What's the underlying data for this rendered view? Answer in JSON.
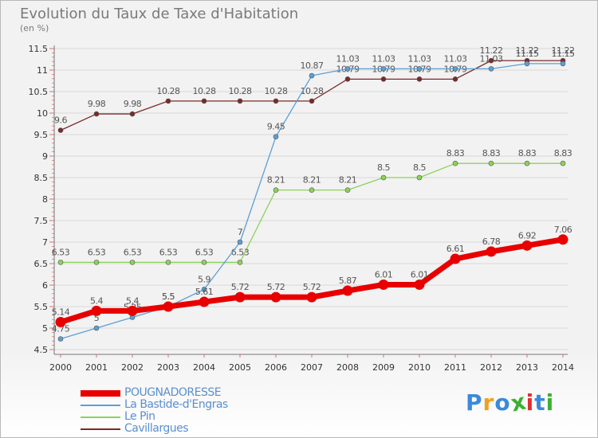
{
  "header": {
    "title": "Evolution du Taux de Taxe d'Habitation",
    "subtitle": "(en %)"
  },
  "logo": {
    "text": "Proxiti",
    "letter_colors": [
      "#3b8ad9",
      "#f0a020",
      "#3b8ad9",
      "#3cb034",
      "#e03030",
      "#3b8ad9",
      "#3cb034"
    ]
  },
  "chart_data": {
    "type": "line",
    "title": "Evolution du Taux de Taxe d'Habitation",
    "subtitle": "(en %)",
    "xlabel": "",
    "ylabel": "",
    "x": [
      "2000",
      "2001",
      "2002",
      "2003",
      "2004",
      "2005",
      "2006",
      "2007",
      "2008",
      "2009",
      "2010",
      "2011",
      "2012",
      "2013",
      "2014"
    ],
    "ylim": [
      4.5,
      11.5
    ],
    "yticks": [
      "4.5",
      "5",
      "5.5",
      "6",
      "6.5",
      "7",
      "7.5",
      "8",
      "8.5",
      "9",
      "9.5",
      "10",
      "10.5",
      "11",
      "11.5"
    ],
    "grid": "horizontal",
    "legend_position": "bottom-left",
    "series": [
      {
        "name": "POUGNADORESSE",
        "color": "#e80000",
        "values": [
          5.14,
          5.4,
          5.4,
          5.5,
          5.61,
          5.72,
          5.72,
          5.72,
          5.87,
          6.01,
          6.01,
          6.61,
          6.78,
          6.92,
          7.06
        ],
        "labels": [
          "5.14",
          "5.4",
          "5.4",
          "5.5",
          "5.61",
          "5.72",
          "5.72",
          "5.72",
          "5.87",
          "6.01",
          "6.01",
          "6.61",
          "6.78",
          "6.92",
          "7.06"
        ]
      },
      {
        "name": "La Bastide-d'Engras",
        "color": "#5b9fd6",
        "values": [
          4.75,
          5,
          5.25,
          5.5,
          5.9,
          7,
          9.45,
          10.87,
          11.03,
          11.03,
          11.03,
          11.03,
          11.03,
          11.15,
          11.15
        ],
        "labels": [
          "4.75",
          "5",
          "5.25",
          "5.5",
          "5.9",
          "7",
          "9.45",
          "10.87",
          "11.03",
          "11.03",
          "11.03",
          "11.03",
          "11.03",
          "11.15",
          "11.15"
        ]
      },
      {
        "name": "Le Pin",
        "color": "#8cd25a",
        "values": [
          6.53,
          6.53,
          6.53,
          6.53,
          6.53,
          6.53,
          8.21,
          8.21,
          8.21,
          8.5,
          8.5,
          8.83,
          8.83,
          8.83,
          8.83
        ],
        "labels": [
          "6.53",
          "6.53",
          "6.53",
          "6.53",
          "6.53",
          "6.53",
          "8.21",
          "8.21",
          "8.21",
          "8.5",
          "8.5",
          "8.83",
          "8.83",
          "8.83",
          "8.83"
        ]
      },
      {
        "name": "Cavillargues",
        "color": "#7a2a2a",
        "values": [
          9.6,
          9.98,
          9.98,
          10.28,
          10.28,
          10.28,
          10.28,
          10.28,
          10.79,
          10.79,
          10.79,
          10.79,
          11.22,
          11.22,
          11.22
        ],
        "labels": [
          "9.6",
          "9.98",
          "9.98",
          "10.28",
          "10.28",
          "10.28",
          "10.28",
          "10.28",
          "10.79",
          "10.79",
          "10.79",
          "10.79",
          "11.22",
          "11.22",
          "11.22"
        ]
      }
    ]
  }
}
